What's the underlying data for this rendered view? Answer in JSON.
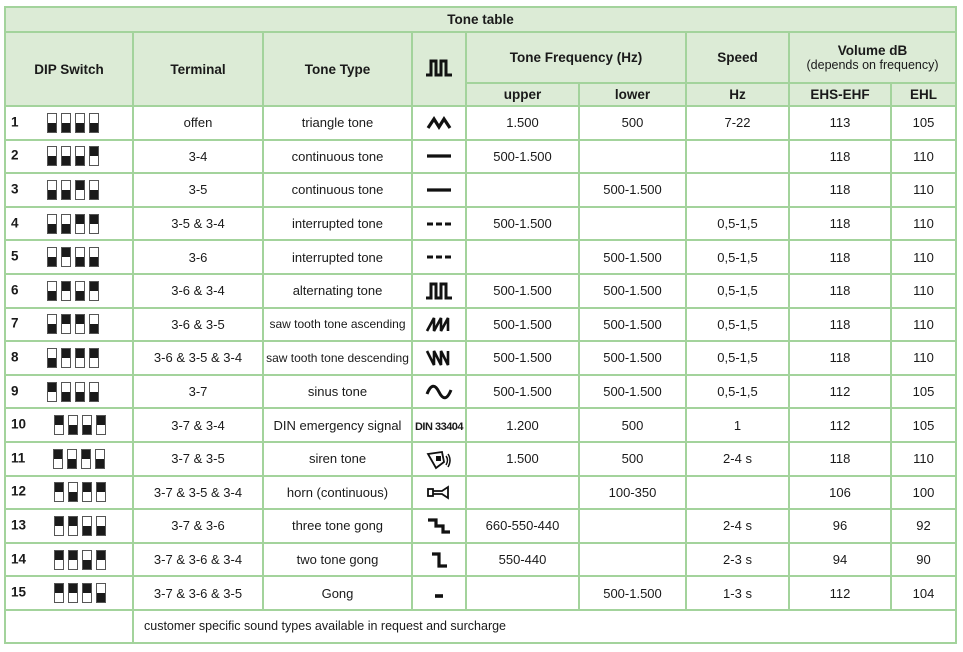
{
  "title": "Tone table",
  "headers": {
    "dip_switch": "DIP Switch",
    "terminal": "Terminal",
    "tone_type": "Tone Type",
    "tone_frequency": "Tone Frequency (Hz)",
    "speed": "Speed",
    "volume": "Volume dB",
    "volume_note": "(depends on frequency)",
    "upper": "upper",
    "lower": "lower",
    "hz": "Hz",
    "ehs_ehf": "EHS-EHF",
    "ehl": "EHL"
  },
  "colors": {
    "border": "#a3d39c",
    "header_bg": "#dcebd6"
  },
  "rows": [
    {
      "no": "1",
      "switches": [
        0,
        0,
        0,
        0
      ],
      "terminal": "offen",
      "tone": "triangle tone",
      "icon": "triangle-wave",
      "upper": "1.500",
      "lower": "500",
      "speed": "7-22",
      "ehs": "113",
      "ehl": "105"
    },
    {
      "no": "2",
      "switches": [
        0,
        0,
        0,
        1
      ],
      "terminal": "3-4",
      "tone": "continuous tone",
      "icon": "continuous-line",
      "upper": "500-1.500",
      "lower": "",
      "speed": "",
      "ehs": "118",
      "ehl": "110"
    },
    {
      "no": "3",
      "switches": [
        0,
        0,
        1,
        0
      ],
      "terminal": "3-5",
      "tone": "continuous tone",
      "icon": "continuous-line",
      "upper": "",
      "lower": "500-1.500",
      "speed": "",
      "ehs": "118",
      "ehl": "110"
    },
    {
      "no": "4",
      "switches": [
        0,
        0,
        1,
        1
      ],
      "terminal": "3-5 & 3-4",
      "tone": "interrupted tone",
      "icon": "dashed-line",
      "upper": "500-1.500",
      "lower": "",
      "speed": "0,5-1,5",
      "ehs": "118",
      "ehl": "110"
    },
    {
      "no": "5",
      "switches": [
        0,
        1,
        0,
        0
      ],
      "terminal": "3-6",
      "tone": "interrupted tone",
      "icon": "dashed-line",
      "upper": "",
      "lower": "500-1.500",
      "speed": "0,5-1,5",
      "ehs": "118",
      "ehl": "110"
    },
    {
      "no": "6",
      "switches": [
        0,
        1,
        0,
        1
      ],
      "terminal": "3-6 & 3-4",
      "tone": "alternating tone",
      "icon": "square-wave",
      "upper": "500-1.500",
      "lower": "500-1.500",
      "speed": "0,5-1,5",
      "ehs": "118",
      "ehl": "110"
    },
    {
      "no": "7",
      "switches": [
        0,
        1,
        1,
        0
      ],
      "terminal": "3-6 & 3-5",
      "tone": "saw tooth tone ascending",
      "icon": "sawtooth-ascending",
      "upper": "500-1.500",
      "lower": "500-1.500",
      "speed": "0,5-1,5",
      "ehs": "118",
      "ehl": "110"
    },
    {
      "no": "8",
      "switches": [
        0,
        1,
        1,
        1
      ],
      "terminal": "3-6 & 3-5 & 3-4",
      "tone": "saw tooth tone descending",
      "icon": "sawtooth-descending",
      "upper": "500-1.500",
      "lower": "500-1.500",
      "speed": "0,5-1,5",
      "ehs": "118",
      "ehl": "110"
    },
    {
      "no": "9",
      "switches": [
        1,
        0,
        0,
        0
      ],
      "terminal": "3-7",
      "tone": "sinus tone",
      "icon": "sine-wave",
      "upper": "500-1.500",
      "lower": "500-1.500",
      "speed": "0,5-1,5",
      "ehs": "112",
      "ehl": "105"
    },
    {
      "no": "10",
      "switches": [
        1,
        0,
        0,
        1
      ],
      "terminal": "3-7 & 3-4",
      "tone": "DIN emergency signal",
      "icon": "din",
      "icon_text": "DIN 33404",
      "upper": "1.200",
      "lower": "500",
      "speed": "1",
      "ehs": "112",
      "ehl": "105"
    },
    {
      "no": "11",
      "switches": [
        1,
        0,
        1,
        0
      ],
      "terminal": "3-7 & 3-5",
      "tone": "siren tone",
      "icon": "siren",
      "upper": "1.500",
      "lower": "500",
      "speed": "2-4 s",
      "ehs": "118",
      "ehl": "110"
    },
    {
      "no": "12",
      "switches": [
        1,
        0,
        1,
        1
      ],
      "terminal": "3-7 & 3-5 & 3-4",
      "tone": "horn (continuous)",
      "icon": "horn",
      "upper": "",
      "lower": "100-350",
      "speed": "",
      "ehs": "106",
      "ehl": "100"
    },
    {
      "no": "13",
      "switches": [
        1,
        1,
        0,
        0
      ],
      "terminal": "3-7 & 3-6",
      "tone": "three tone gong",
      "icon": "three-step",
      "upper": "660-550-440",
      "lower": "",
      "speed": "2-4 s",
      "ehs": "96",
      "ehl": "92"
    },
    {
      "no": "14",
      "switches": [
        1,
        1,
        0,
        1
      ],
      "terminal": "3-7 & 3-6 & 3-4",
      "tone": "two tone gong",
      "icon": "two-step",
      "upper": "550-440",
      "lower": "",
      "speed": "2-3 s",
      "ehs": "94",
      "ehl": "90"
    },
    {
      "no": "15",
      "switches": [
        1,
        1,
        1,
        0
      ],
      "terminal": "3-7 & 3-6 & 3-5",
      "tone": "Gong",
      "icon": "short-dash",
      "upper": "",
      "lower": "500-1.500",
      "speed": "1-3 s",
      "ehs": "112",
      "ehl": "104"
    }
  ],
  "footer": "customer specific sound types available in request and surcharge"
}
